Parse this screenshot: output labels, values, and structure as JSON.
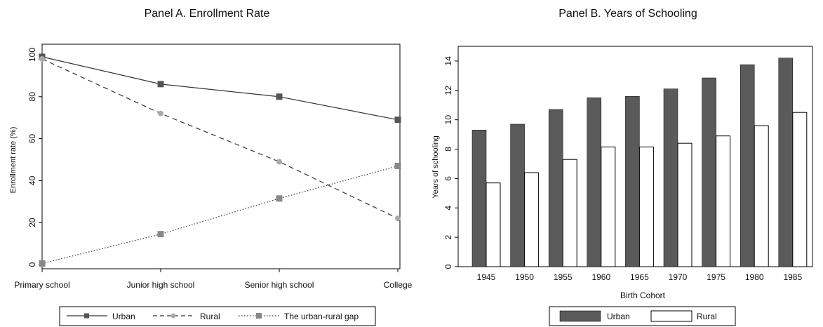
{
  "chart_data": [
    {
      "type": "line",
      "title": "Panel A. Enrollment Rate",
      "xlabel": "",
      "ylabel": "Enrollment rate (%)",
      "categories": [
        "Primary school",
        "Junior high school",
        "Senior high school",
        "College"
      ],
      "ylim": [
        0,
        100
      ],
      "yticks": [
        0,
        20,
        40,
        60,
        80,
        100
      ],
      "grid": false,
      "legend_position": "bottom",
      "series": [
        {
          "name": "Urban",
          "values": [
            99,
            86,
            80,
            69
          ],
          "line_style": "solid",
          "marker": "square",
          "color": "#555555"
        },
        {
          "name": "Rural",
          "values": [
            98,
            72,
            49,
            22
          ],
          "line_style": "dashed",
          "marker": "circle",
          "color": "#aaaaaa"
        },
        {
          "name": "The urban-rural gap",
          "values": [
            0.5,
            14.5,
            31.5,
            47
          ],
          "line_style": "dotted",
          "marker": "square",
          "color": "#888888"
        }
      ]
    },
    {
      "type": "bar",
      "title": "Panel B. Years of Schooling",
      "xlabel": "Birth Cohort",
      "ylabel": "Years of schooling",
      "categories": [
        "1945",
        "1950",
        "1955",
        "1960",
        "1965",
        "1970",
        "1975",
        "1980",
        "1985"
      ],
      "ylim": [
        0,
        15
      ],
      "yticks": [
        0,
        2,
        4,
        6,
        8,
        10,
        12,
        14
      ],
      "grid": false,
      "legend_position": "bottom",
      "series": [
        {
          "name": "Urban",
          "values": [
            9.3,
            9.7,
            10.7,
            11.5,
            11.6,
            12.1,
            12.85,
            13.75,
            14.2
          ],
          "color": "#5a5a5a"
        },
        {
          "name": "Rural",
          "values": [
            5.7,
            6.4,
            7.3,
            8.15,
            8.15,
            8.4,
            8.9,
            9.6,
            10.5
          ],
          "color": "#ffffff"
        }
      ]
    }
  ]
}
